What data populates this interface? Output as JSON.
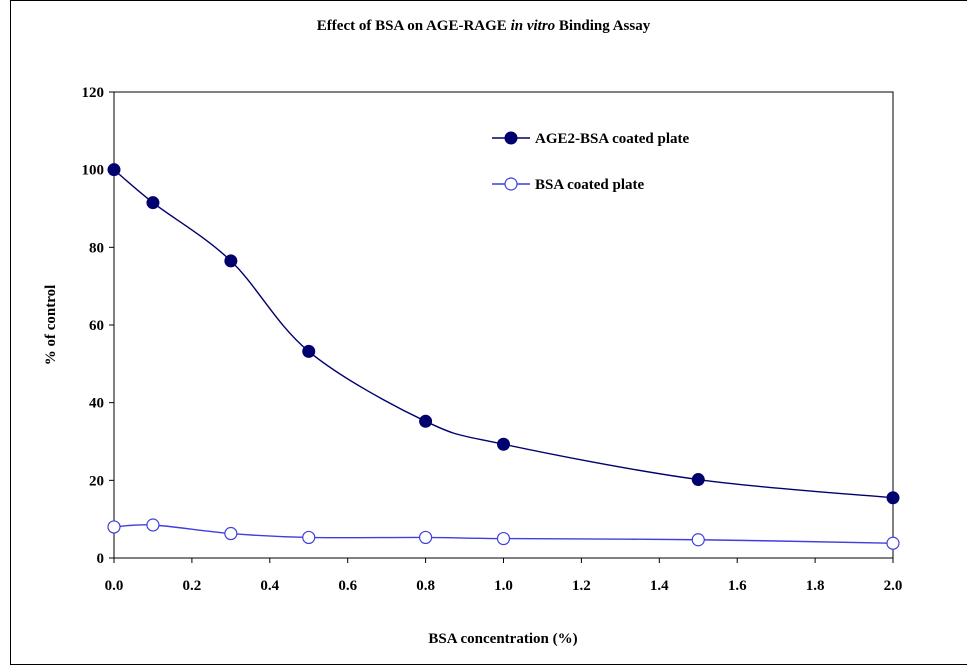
{
  "title": {
    "before": "Effect of BSA on AGE-RAGE ",
    "italic": "in vitro",
    "after": " Binding Assay"
  },
  "chart_data": {
    "type": "line",
    "xlabel": "BSA concentration (%)",
    "ylabel": "% of control",
    "xlim": [
      0,
      2
    ],
    "ylim": [
      0,
      120
    ],
    "xticks": [
      "0.0",
      "0.2",
      "0.4",
      "0.6",
      "0.8",
      "1.0",
      "1.2",
      "1.4",
      "1.6",
      "1.8",
      "2.0"
    ],
    "yticks": [
      "0",
      "20",
      "40",
      "60",
      "80",
      "100",
      "120"
    ],
    "grid": false,
    "legend_position": "top-right",
    "series": [
      {
        "name": "AGE2-BSA coated plate",
        "marker": "filled-circle",
        "color": "#00006e",
        "points": [
          [
            0.0,
            100
          ],
          [
            0.1,
            91.5
          ],
          [
            0.3,
            76.5
          ],
          [
            0.5,
            53.2
          ],
          [
            0.8,
            35.2
          ],
          [
            1.0,
            29.3
          ],
          [
            1.5,
            20.2
          ],
          [
            2.0,
            15.5
          ]
        ]
      },
      {
        "name": "BSA coated plate",
        "marker": "open-circle",
        "color": "#3f3fdc",
        "points": [
          [
            0.0,
            8.0
          ],
          [
            0.1,
            8.5
          ],
          [
            0.3,
            6.3
          ],
          [
            0.5,
            5.3
          ],
          [
            0.8,
            5.3
          ],
          [
            1.0,
            5.0
          ],
          [
            1.5,
            4.7
          ],
          [
            2.0,
            3.8
          ]
        ]
      }
    ]
  }
}
